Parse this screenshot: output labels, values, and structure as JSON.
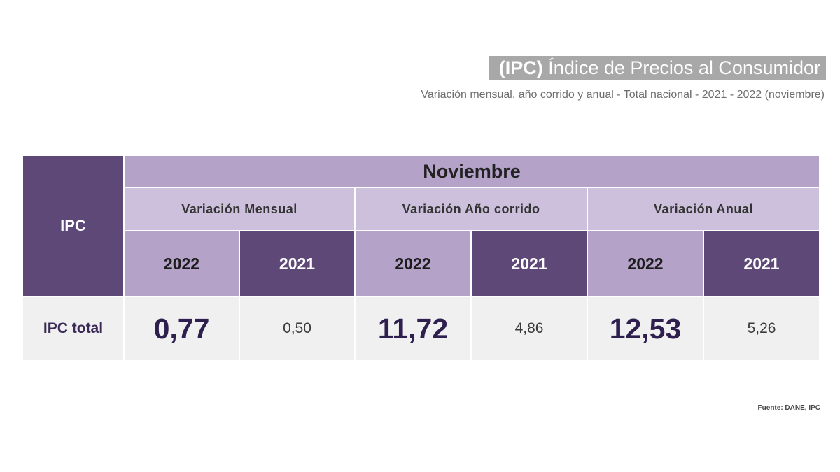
{
  "header": {
    "title_abbr": "(IPC)",
    "title_rest": "Índice de Precios al Consumidor",
    "subtitle": "Variación mensual, año corrido y anual - Total nacional  - 2021 - 2022 (noviembre)"
  },
  "table": {
    "corner_label": "IPC",
    "month": "Noviembre",
    "groups": [
      "Variación Mensual",
      "Variación Año corrido",
      "Variación Anual"
    ],
    "years": [
      "2022",
      "2021",
      "2022",
      "2021",
      "2022",
      "2021"
    ],
    "row": {
      "label": "IPC total",
      "values": [
        "0,77",
        "0,50",
        "11,72",
        "4,86",
        "12,53",
        "5,26"
      ]
    }
  },
  "chart_data": {
    "type": "table",
    "title": "(IPC) Índice de Precios al Consumidor",
    "subtitle": "Variación mensual, año corrido y anual - Total nacional  - 2021 - 2022 (noviembre)",
    "columns": [
      {
        "group": "Variación Mensual",
        "year": "2022",
        "value": 0.77
      },
      {
        "group": "Variación Mensual",
        "year": "2021",
        "value": 0.5
      },
      {
        "group": "Variación Año corrido",
        "year": "2022",
        "value": 11.72
      },
      {
        "group": "Variación Año corrido",
        "year": "2021",
        "value": 4.86
      },
      {
        "group": "Variación Anual",
        "year": "2022",
        "value": 12.53
      },
      {
        "group": "Variación Anual",
        "year": "2021",
        "value": 5.26
      }
    ],
    "row_label": "IPC total"
  },
  "footer": {
    "source": "Fuente: DANE, IPC"
  }
}
